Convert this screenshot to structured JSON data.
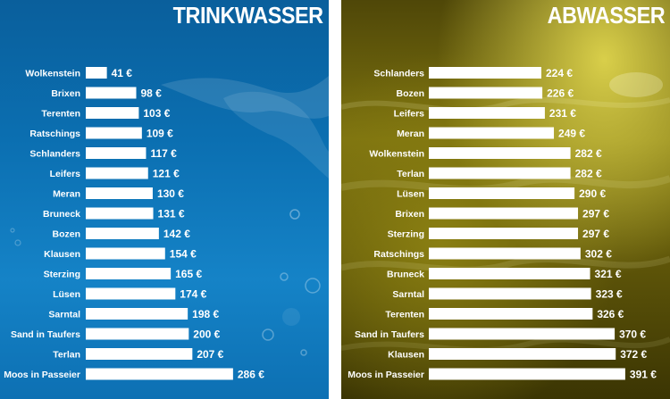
{
  "chart_data": [
    {
      "type": "bar",
      "orientation": "horizontal",
      "title": "TRINKWASSER",
      "unit": "€",
      "categories": [
        "Wolkenstein",
        "Brixen",
        "Terenten",
        "Ratschings",
        "Schlanders",
        "Leifers",
        "Meran",
        "Bruneck",
        "Bozen",
        "Klausen",
        "Sterzing",
        "Lüsen",
        "Sarntal",
        "Sand in Taufers",
        "Terlan",
        "Moos in Passeier"
      ],
      "values": [
        41,
        98,
        103,
        109,
        117,
        121,
        130,
        131,
        142,
        154,
        165,
        174,
        198,
        200,
        207,
        286
      ],
      "value_labels": [
        "41 €",
        "98 €",
        "103 €",
        "109 €",
        "117 €",
        "121 €",
        "130 €",
        "131 €",
        "142 €",
        "154 €",
        "165 €",
        "174 €",
        "198 €",
        "200 €",
        "207 €",
        "286 €"
      ],
      "bar_color": "#ffffff",
      "background_color": "#0b6fb1",
      "grid": false
    },
    {
      "type": "bar",
      "orientation": "horizontal",
      "title": "ABWASSER",
      "unit": "€",
      "categories": [
        "Schlanders",
        "Bozen",
        "Leifers",
        "Meran",
        "Wolkenstein",
        "Terlan",
        "Lüsen",
        "Brixen",
        "Sterzing",
        "Ratschings",
        "Bruneck",
        "Sarntal",
        "Terenten",
        "Sand in Taufers",
        "Klausen",
        "Moos in Passeier"
      ],
      "values": [
        224,
        226,
        231,
        249,
        282,
        282,
        290,
        297,
        297,
        302,
        321,
        323,
        326,
        370,
        372,
        391
      ],
      "value_labels": [
        "224 €",
        "226 €",
        "231 €",
        "249 €",
        "282 €",
        "282 €",
        "290 €",
        "297 €",
        "297 €",
        "302 €",
        "321 €",
        "323 €",
        "326 €",
        "370 €",
        "372 €",
        "391 €"
      ],
      "bar_color": "#ffffff",
      "background_color": "#6e650c",
      "grid": false
    }
  ]
}
